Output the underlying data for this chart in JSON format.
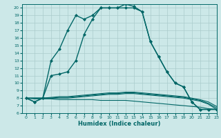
{
  "xlabel": "Humidex (Indice chaleur)",
  "bg_color": "#cce8e8",
  "grid_color": "#aacccc",
  "line_color": "#006666",
  "xlim": [
    -0.5,
    23
  ],
  "ylim": [
    6,
    20.5
  ],
  "yticks": [
    6,
    7,
    8,
    9,
    10,
    11,
    12,
    13,
    14,
    15,
    16,
    17,
    18,
    19,
    20
  ],
  "xticks": [
    0,
    1,
    2,
    3,
    4,
    5,
    6,
    7,
    8,
    9,
    10,
    11,
    12,
    13,
    14,
    15,
    16,
    17,
    18,
    19,
    20,
    21,
    22,
    23
  ],
  "series": [
    {
      "x": [
        0,
        1,
        2,
        3,
        4,
        5,
        6,
        7,
        8,
        9,
        10,
        11,
        12,
        13,
        14,
        15,
        16,
        17,
        18,
        19,
        20,
        21,
        22,
        23
      ],
      "y": [
        8,
        7.5,
        8,
        11,
        11.2,
        11.5,
        13,
        16.5,
        18.5,
        20,
        20,
        20,
        20.5,
        20.2,
        19.5,
        15.5,
        13.5,
        11.5,
        10,
        9.5,
        7.5,
        6.5,
        6.5,
        6.5
      ],
      "marker": "D",
      "markersize": 2.0,
      "linewidth": 1.0
    },
    {
      "x": [
        0,
        1,
        2,
        3,
        4,
        5,
        6,
        7,
        8,
        9,
        10,
        11,
        12,
        13,
        14,
        15,
        16,
        17,
        18,
        19,
        20,
        21,
        22,
        23
      ],
      "y": [
        8,
        7.5,
        8,
        13,
        14.5,
        17,
        19,
        18.5,
        19,
        20,
        20,
        20,
        20,
        20,
        19.5,
        15.5,
        13.5,
        11.5,
        10,
        9.5,
        7.5,
        6.5,
        6.5,
        6.5
      ],
      "marker": "D",
      "markersize": 2.0,
      "linewidth": 1.0
    },
    {
      "x": [
        0,
        1,
        2,
        3,
        4,
        5,
        6,
        7,
        8,
        9,
        10,
        11,
        12,
        13,
        14,
        15,
        16,
        17,
        18,
        19,
        20,
        21,
        22,
        23
      ],
      "y": [
        8.0,
        8.0,
        8.0,
        8.1,
        8.2,
        8.2,
        8.3,
        8.4,
        8.5,
        8.6,
        8.7,
        8.7,
        8.8,
        8.8,
        8.7,
        8.6,
        8.5,
        8.4,
        8.3,
        8.2,
        8.0,
        7.8,
        7.5,
        6.9
      ],
      "marker": null,
      "markersize": 0,
      "linewidth": 0.8
    },
    {
      "x": [
        0,
        1,
        2,
        3,
        4,
        5,
        6,
        7,
        8,
        9,
        10,
        11,
        12,
        13,
        14,
        15,
        16,
        17,
        18,
        19,
        20,
        21,
        22,
        23
      ],
      "y": [
        8.0,
        8.0,
        8.0,
        8.0,
        8.1,
        8.1,
        8.2,
        8.3,
        8.4,
        8.5,
        8.6,
        8.6,
        8.7,
        8.7,
        8.6,
        8.5,
        8.4,
        8.3,
        8.2,
        8.1,
        7.9,
        7.7,
        7.3,
        6.7
      ],
      "marker": null,
      "markersize": 0,
      "linewidth": 0.8
    },
    {
      "x": [
        0,
        1,
        2,
        3,
        4,
        5,
        6,
        7,
        8,
        9,
        10,
        11,
        12,
        13,
        14,
        15,
        16,
        17,
        18,
        19,
        20,
        21,
        22,
        23
      ],
      "y": [
        8.0,
        8.0,
        8.0,
        8.0,
        8.0,
        8.0,
        8.1,
        8.2,
        8.3,
        8.4,
        8.5,
        8.5,
        8.6,
        8.6,
        8.5,
        8.4,
        8.3,
        8.2,
        8.1,
        8.0,
        7.8,
        7.6,
        7.2,
        6.5
      ],
      "marker": null,
      "markersize": 0,
      "linewidth": 0.8
    },
    {
      "x": [
        0,
        1,
        2,
        3,
        4,
        5,
        6,
        7,
        8,
        9,
        10,
        11,
        12,
        13,
        14,
        15,
        16,
        17,
        18,
        19,
        20,
        21,
        22,
        23
      ],
      "y": [
        8.0,
        7.9,
        7.9,
        7.9,
        7.8,
        7.8,
        7.8,
        7.8,
        7.8,
        7.7,
        7.7,
        7.7,
        7.7,
        7.6,
        7.5,
        7.4,
        7.3,
        7.2,
        7.1,
        7.0,
        6.9,
        6.8,
        6.6,
        6.5
      ],
      "marker": null,
      "markersize": 0,
      "linewidth": 0.8
    }
  ]
}
